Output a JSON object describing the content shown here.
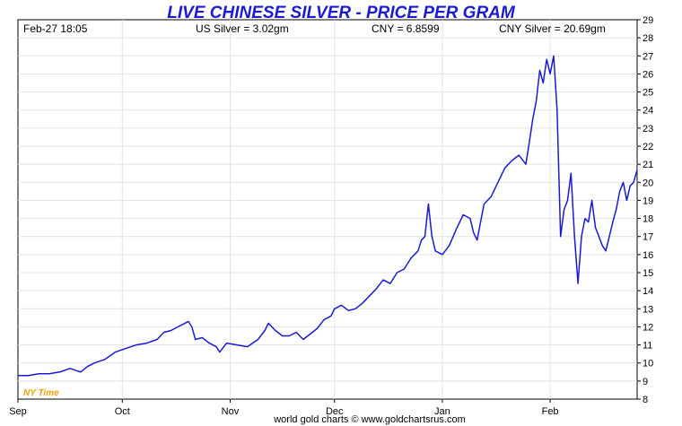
{
  "chart_data": {
    "type": "line",
    "title": "LIVE CHINESE SILVER - PRICE PER GRAM",
    "header": {
      "timestamp": "Feb-27  18:05",
      "us_silver": "US Silver = 3.02gm",
      "cny_rate": "CNY = 6.8599",
      "cny_silver": "CNY Silver = 20.69gm"
    },
    "timezone_label": "NY Time",
    "credit": "world gold charts © www.goldchartsrus.com",
    "xlabel": "",
    "ylabel": "",
    "x_ticks": [
      {
        "label": "Sep",
        "x": 0
      },
      {
        "label": "Oct",
        "x": 30
      },
      {
        "label": "Nov",
        "x": 61
      },
      {
        "label": "Dec",
        "x": 91
      },
      {
        "label": "Jan",
        "x": 122
      },
      {
        "label": "Feb",
        "x": 153
      }
    ],
    "xlim": [
      0,
      178
    ],
    "ylim": [
      8,
      29
    ],
    "y_ticks": [
      8,
      9,
      10,
      11,
      12,
      13,
      14,
      15,
      16,
      17,
      18,
      19,
      20,
      21,
      22,
      23,
      24,
      25,
      26,
      27,
      28,
      29
    ],
    "grid": true,
    "line_color": "#1a1ad6",
    "series": [
      {
        "points": [
          [
            0,
            9.3
          ],
          [
            3,
            9.3
          ],
          [
            6,
            9.4
          ],
          [
            9,
            9.4
          ],
          [
            12,
            9.5
          ],
          [
            15,
            9.7
          ],
          [
            18,
            9.5
          ],
          [
            20,
            9.8
          ],
          [
            22,
            10.0
          ],
          [
            25,
            10.2
          ],
          [
            28,
            10.6
          ],
          [
            31,
            10.8
          ],
          [
            34,
            11.0
          ],
          [
            37,
            11.1
          ],
          [
            40,
            11.3
          ],
          [
            42,
            11.7
          ],
          [
            44,
            11.8
          ],
          [
            46,
            12.0
          ],
          [
            48,
            12.2
          ],
          [
            49,
            12.3
          ],
          [
            50,
            12.0
          ],
          [
            51,
            11.3
          ],
          [
            53,
            11.4
          ],
          [
            55,
            11.1
          ],
          [
            57,
            10.9
          ],
          [
            58,
            10.6
          ],
          [
            60,
            11.1
          ],
          [
            63,
            11.0
          ],
          [
            66,
            10.9
          ],
          [
            69,
            11.3
          ],
          [
            71,
            11.8
          ],
          [
            72,
            12.2
          ],
          [
            74,
            11.8
          ],
          [
            76,
            11.5
          ],
          [
            78,
            11.5
          ],
          [
            80,
            11.7
          ],
          [
            82,
            11.3
          ],
          [
            84,
            11.6
          ],
          [
            86,
            11.9
          ],
          [
            88,
            12.4
          ],
          [
            90,
            12.6
          ],
          [
            91,
            13.0
          ],
          [
            93,
            13.2
          ],
          [
            95,
            12.9
          ],
          [
            97,
            13.0
          ],
          [
            99,
            13.3
          ],
          [
            101,
            13.7
          ],
          [
            103,
            14.1
          ],
          [
            105,
            14.6
          ],
          [
            107,
            14.4
          ],
          [
            109,
            15.0
          ],
          [
            111,
            15.2
          ],
          [
            113,
            15.8
          ],
          [
            115,
            16.2
          ],
          [
            116,
            16.8
          ],
          [
            117,
            17.0
          ],
          [
            118,
            18.8
          ],
          [
            119,
            17.0
          ],
          [
            120,
            16.2
          ],
          [
            122,
            16.0
          ],
          [
            124,
            16.5
          ],
          [
            126,
            17.4
          ],
          [
            128,
            18.2
          ],
          [
            130,
            18.0
          ],
          [
            131,
            17.2
          ],
          [
            132,
            16.8
          ],
          [
            134,
            18.8
          ],
          [
            136,
            19.2
          ],
          [
            138,
            20.0
          ],
          [
            140,
            20.8
          ],
          [
            142,
            21.2
          ],
          [
            144,
            21.5
          ],
          [
            146,
            21.0
          ],
          [
            147,
            22.2
          ],
          [
            148,
            23.5
          ],
          [
            149,
            24.5
          ],
          [
            150,
            26.2
          ],
          [
            151,
            25.5
          ],
          [
            152,
            26.8
          ],
          [
            153,
            26.0
          ],
          [
            154,
            27.0
          ],
          [
            155,
            24.0
          ],
          [
            156,
            17.0
          ],
          [
            157,
            18.5
          ],
          [
            158,
            19.0
          ],
          [
            159,
            20.5
          ],
          [
            160,
            17.0
          ],
          [
            161,
            14.4
          ],
          [
            162,
            17.0
          ],
          [
            163,
            18.0
          ],
          [
            164,
            17.8
          ],
          [
            165,
            19.0
          ],
          [
            166,
            17.5
          ],
          [
            167,
            17.0
          ],
          [
            168,
            16.5
          ],
          [
            169,
            16.2
          ],
          [
            170,
            17.0
          ],
          [
            171,
            17.8
          ],
          [
            172,
            18.5
          ],
          [
            173,
            19.5
          ],
          [
            174,
            20.0
          ],
          [
            175,
            19.0
          ],
          [
            176,
            19.8
          ],
          [
            177,
            20.0
          ],
          [
            178,
            20.69
          ]
        ]
      }
    ]
  }
}
